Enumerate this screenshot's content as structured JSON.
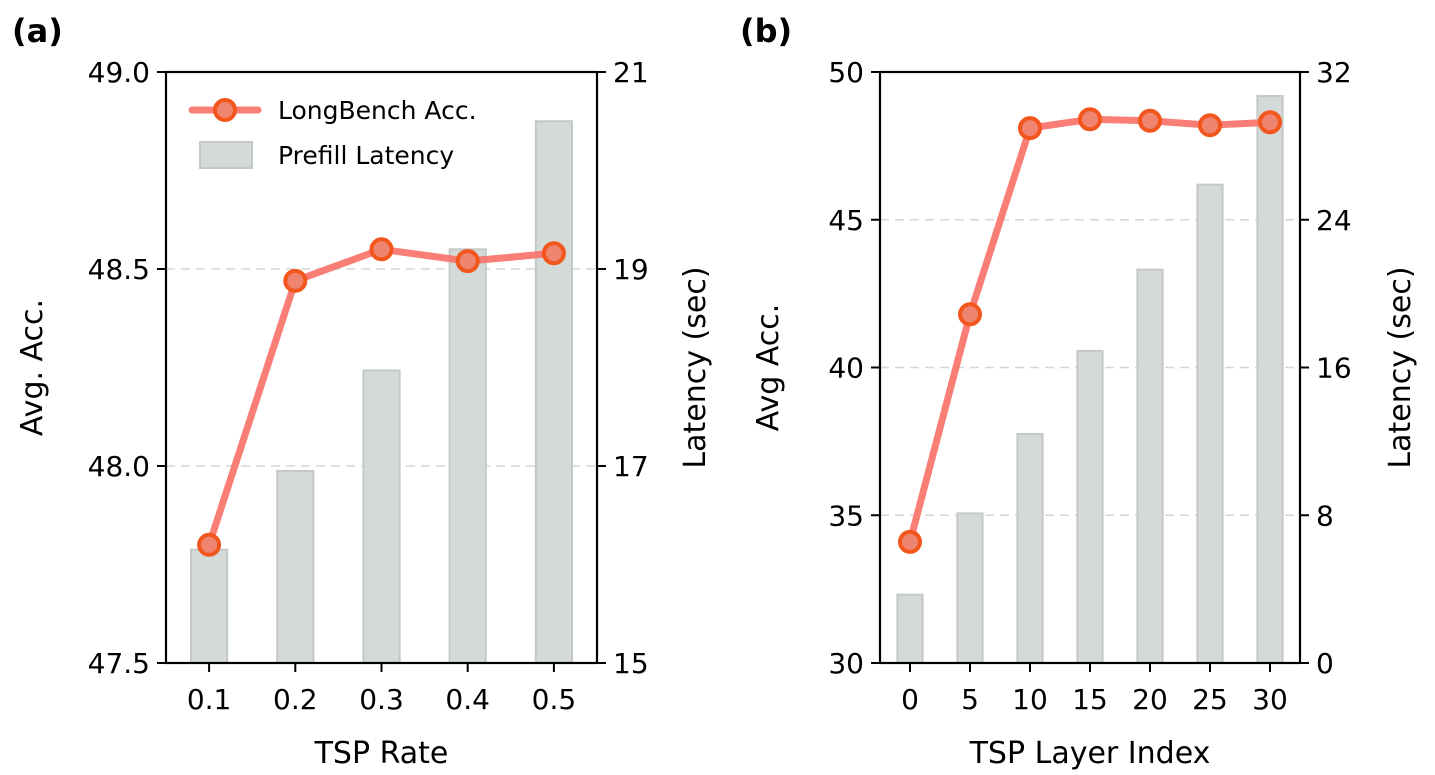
{
  "chart_data": [
    {
      "type": "bar+line",
      "panel_label": "(a)",
      "xlabel": "TSP Rate",
      "ylabel_left": "Avg. Acc.",
      "ylabel_right": "Latency (sec)",
      "categories": [
        "0.1",
        "0.2",
        "0.3",
        "0.4",
        "0.5"
      ],
      "ylim_left": [
        47.5,
        49.0
      ],
      "yticks_left": [
        "47.5",
        "48.0",
        "48.5",
        "49.0"
      ],
      "ylim_right": [
        15,
        21
      ],
      "yticks_right": [
        "15",
        "17",
        "19",
        "21"
      ],
      "grid": "horizontal dashed",
      "legend": {
        "placement": "top-left",
        "entries": [
          "LongBench Acc.",
          "Prefill Latency"
        ]
      },
      "series": [
        {
          "name": "LongBench Acc.",
          "kind": "line",
          "axis": "left",
          "values": [
            47.8,
            48.47,
            48.55,
            48.52,
            48.54
          ]
        },
        {
          "name": "Prefill Latency",
          "kind": "bar",
          "axis": "right",
          "values": [
            16.15,
            16.95,
            17.97,
            19.2,
            20.5
          ]
        }
      ]
    },
    {
      "type": "bar+line",
      "panel_label": "(b)",
      "xlabel": "TSP Layer Index",
      "ylabel_left": "Avg Acc.",
      "ylabel_right": "Latency (sec)",
      "categories": [
        "0",
        "5",
        "10",
        "15",
        "20",
        "25",
        "30"
      ],
      "ylim_left": [
        30,
        50
      ],
      "yticks_left": [
        "30",
        "35",
        "40",
        "45",
        "50"
      ],
      "ylim_right": [
        0,
        32
      ],
      "yticks_right": [
        "0",
        "8",
        "16",
        "24",
        "32"
      ],
      "grid": "horizontal dashed",
      "series": [
        {
          "name": "Accuracy",
          "kind": "line",
          "axis": "left",
          "values": [
            34.1,
            41.8,
            48.1,
            48.4,
            48.35,
            48.2,
            48.3
          ]
        },
        {
          "name": "Latency",
          "kind": "bar",
          "axis": "right",
          "values": [
            3.7,
            8.1,
            12.4,
            16.9,
            21.3,
            25.9,
            30.7
          ]
        }
      ]
    }
  ]
}
